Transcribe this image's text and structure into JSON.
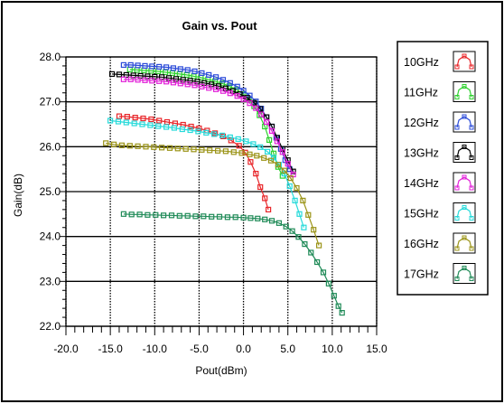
{
  "chart_data": {
    "type": "line",
    "title": "Gain vs. Pout",
    "xlabel": "Pout(dBm)",
    "ylabel": "Gain(dB)",
    "xlim": [
      -20,
      15
    ],
    "ylim": [
      22,
      28
    ],
    "x_ticks": [
      "-20.0",
      "-15.0",
      "-10.0",
      "-5.0",
      "0.0",
      "5.0",
      "10.0",
      "15.0"
    ],
    "y_ticks": [
      "22.0",
      "23.0",
      "24.0",
      "25.0",
      "26.0",
      "27.0",
      "28.0"
    ],
    "grid": true,
    "legend_position": "right",
    "marker": "square",
    "series": [
      {
        "name": "10GHz",
        "color": "#e8262a",
        "x": [
          -14.0,
          -13.1,
          -12.2,
          -11.3,
          -10.4,
          -9.5,
          -8.6,
          -7.7,
          -6.8,
          -5.9,
          -5.0,
          -4.1,
          -3.2,
          -2.3,
          -1.4,
          -0.5,
          0.2,
          0.8,
          1.4,
          1.9,
          2.4,
          2.8
        ],
        "y": [
          26.68,
          26.67,
          26.65,
          26.63,
          26.61,
          26.58,
          26.55,
          26.52,
          26.49,
          26.45,
          26.41,
          26.36,
          26.3,
          26.23,
          26.14,
          26.02,
          25.87,
          25.66,
          25.4,
          25.1,
          24.85,
          24.6
        ]
      },
      {
        "name": "11GHz",
        "color": "#2ed12e",
        "x": [
          -12.8,
          -12.0,
          -11.2,
          -10.4,
          -9.6,
          -8.8,
          -8.0,
          -7.2,
          -6.4,
          -5.6,
          -4.8,
          -4.0,
          -3.2,
          -2.4,
          -1.6,
          -0.8,
          0.0,
          0.6,
          1.2,
          1.8,
          2.4,
          2.9,
          3.4,
          3.9,
          4.4
        ],
        "y": [
          27.72,
          27.71,
          27.7,
          27.69,
          27.68,
          27.66,
          27.64,
          27.62,
          27.6,
          27.57,
          27.54,
          27.5,
          27.46,
          27.41,
          27.35,
          27.27,
          27.17,
          27.05,
          26.9,
          26.7,
          26.45,
          26.15,
          25.85,
          25.55,
          25.35
        ]
      },
      {
        "name": "12GHz",
        "color": "#2b4bd8",
        "x": [
          -13.5,
          -12.7,
          -11.9,
          -11.1,
          -10.3,
          -9.5,
          -8.7,
          -7.9,
          -7.1,
          -6.3,
          -5.5,
          -4.7,
          -3.9,
          -3.1,
          -2.3,
          -1.5,
          -0.7,
          0.0,
          0.7,
          1.4,
          2.0,
          2.6,
          3.2,
          3.7,
          4.2,
          4.7,
          5.2
        ],
        "y": [
          27.82,
          27.82,
          27.81,
          27.8,
          27.79,
          27.78,
          27.77,
          27.75,
          27.73,
          27.71,
          27.68,
          27.64,
          27.6,
          27.55,
          27.49,
          27.42,
          27.34,
          27.25,
          27.14,
          27.01,
          26.85,
          26.66,
          26.45,
          26.2,
          25.95,
          25.7,
          25.5
        ]
      },
      {
        "name": "13GHz",
        "color": "#000000",
        "x": [
          -14.8,
          -14.0,
          -13.2,
          -12.4,
          -11.6,
          -10.8,
          -10.0,
          -9.2,
          -8.4,
          -7.6,
          -6.8,
          -6.0,
          -5.2,
          -4.4,
          -3.6,
          -2.8,
          -2.0,
          -1.2,
          -0.4,
          0.4,
          1.2,
          1.9,
          2.6,
          3.2,
          3.8,
          4.4,
          5.0,
          5.6
        ],
        "y": [
          27.62,
          27.61,
          27.6,
          27.59,
          27.58,
          27.57,
          27.56,
          27.55,
          27.53,
          27.51,
          27.49,
          27.47,
          27.45,
          27.42,
          27.39,
          27.35,
          27.3,
          27.24,
          27.17,
          27.09,
          26.98,
          26.84,
          26.66,
          26.45,
          26.2,
          25.95,
          25.7,
          25.45
        ]
      },
      {
        "name": "14GHz",
        "color": "#e21fd8",
        "x": [
          -13.5,
          -12.7,
          -11.9,
          -11.1,
          -10.3,
          -9.5,
          -8.7,
          -7.9,
          -7.1,
          -6.3,
          -5.5,
          -4.7,
          -3.9,
          -3.1,
          -2.3,
          -1.5,
          -0.7,
          0.0,
          0.7,
          1.4,
          2.0,
          2.6,
          3.2,
          3.8,
          4.4,
          5.0,
          5.6
        ],
        "y": [
          27.5,
          27.5,
          27.49,
          27.48,
          27.47,
          27.46,
          27.45,
          27.43,
          27.41,
          27.39,
          27.37,
          27.34,
          27.31,
          27.28,
          27.24,
          27.19,
          27.13,
          27.06,
          26.97,
          26.86,
          26.72,
          26.55,
          26.35,
          26.12,
          25.88,
          25.62,
          25.38
        ]
      },
      {
        "name": "15GHz",
        "color": "#27dada",
        "x": [
          -15.0,
          -14.1,
          -13.2,
          -12.3,
          -11.4,
          -10.5,
          -9.6,
          -8.7,
          -7.8,
          -6.9,
          -6.0,
          -5.1,
          -4.2,
          -3.3,
          -2.4,
          -1.5,
          -0.6,
          0.3,
          1.1,
          1.9,
          2.7,
          3.4,
          4.0,
          4.6,
          5.2,
          5.8,
          6.3,
          6.8
        ],
        "y": [
          26.58,
          26.56,
          26.54,
          26.52,
          26.5,
          26.48,
          26.46,
          26.44,
          26.42,
          26.39,
          26.37,
          26.34,
          26.31,
          26.28,
          26.25,
          26.21,
          26.17,
          26.12,
          26.06,
          25.99,
          25.89,
          25.76,
          25.6,
          25.4,
          25.12,
          24.8,
          24.5,
          24.2
        ]
      },
      {
        "name": "16GHz",
        "color": "#9b9418",
        "x": [
          -15.5,
          -14.6,
          -13.7,
          -12.8,
          -11.9,
          -11.0,
          -10.1,
          -9.2,
          -8.3,
          -7.4,
          -6.5,
          -5.6,
          -4.7,
          -3.8,
          -2.9,
          -2.0,
          -1.1,
          -0.2,
          0.7,
          1.5,
          2.3,
          3.1,
          3.9,
          4.6,
          5.3,
          6.0,
          6.7,
          7.3,
          7.9,
          8.5
        ],
        "y": [
          26.08,
          26.05,
          26.03,
          26.02,
          26.01,
          26.0,
          25.99,
          25.98,
          25.97,
          25.96,
          25.95,
          25.94,
          25.93,
          25.92,
          25.91,
          25.9,
          25.88,
          25.86,
          25.83,
          25.8,
          25.75,
          25.69,
          25.6,
          25.47,
          25.3,
          25.08,
          24.8,
          24.48,
          24.15,
          23.8
        ]
      },
      {
        "name": "17GHz",
        "color": "#1f8a57",
        "x": [
          -13.5,
          -12.6,
          -11.7,
          -10.8,
          -9.9,
          -9.0,
          -8.1,
          -7.2,
          -6.3,
          -5.4,
          -4.5,
          -3.6,
          -2.7,
          -1.8,
          -0.9,
          0.0,
          0.8,
          1.6,
          2.4,
          3.2,
          4.0,
          4.8,
          5.5,
          6.2,
          6.9,
          7.6,
          8.3,
          9.0,
          9.6,
          10.2,
          10.7,
          11.1
        ],
        "y": [
          24.5,
          24.49,
          24.49,
          24.48,
          24.48,
          24.47,
          24.47,
          24.46,
          24.46,
          24.45,
          24.45,
          24.44,
          24.44,
          24.43,
          24.43,
          24.42,
          24.41,
          24.4,
          24.38,
          24.35,
          24.3,
          24.22,
          24.12,
          23.99,
          23.83,
          23.64,
          23.43,
          23.2,
          22.95,
          22.68,
          22.45,
          22.3
        ]
      }
    ]
  }
}
